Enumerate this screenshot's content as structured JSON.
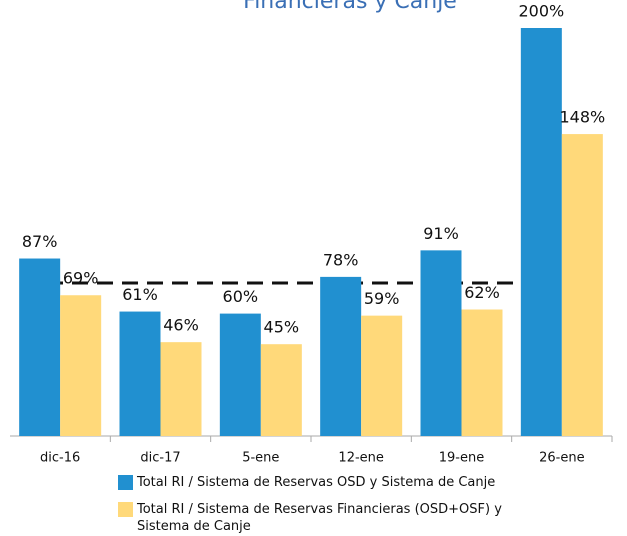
{
  "chart_data": {
    "type": "bar",
    "title": "Financieras y Canje",
    "categories": [
      "dic-16",
      "dic-17",
      "5-ene",
      "12-ene",
      "19-ene",
      "26-ene"
    ],
    "series": [
      {
        "name": "Total RI / Sistema de Reservas OSD y Sistema de Canje",
        "color": "#2190d0",
        "values": [
          87,
          61,
          60,
          78,
          91,
          200
        ],
        "value_labels": [
          "87%",
          "61%",
          "60%",
          "78%",
          "91%",
          "200%"
        ]
      },
      {
        "name": "Total RI / Sistema de Reservas Financieras (OSD+OSF) y Sistema de Canje",
        "color": "#ffd97a",
        "values": [
          69,
          46,
          45,
          59,
          62,
          148
        ],
        "value_labels": [
          "69%",
          "46%",
          "45%",
          "59%",
          "62%",
          "148%"
        ]
      }
    ],
    "ylim": [
      0,
      200
    ]
  }
}
